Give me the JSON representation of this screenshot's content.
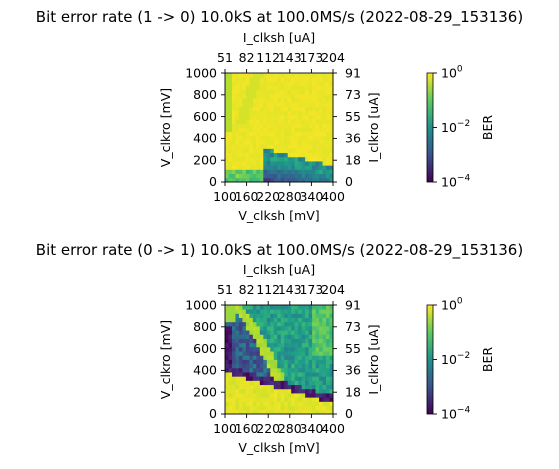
{
  "chart_data": [
    {
      "type": "heatmap",
      "title": "Bit error rate (1 -> 0) 10.0kS at 100.0MS/s (2022-08-29_153136)",
      "xlabel": "V_clksh [mV]",
      "ylabel": "V_clkro [mV]",
      "top_xlabel": "I_clksh [uA]",
      "right_ylabel": "I_clkro [uA]",
      "x_ticks": [
        "100",
        "160",
        "220",
        "280",
        "340",
        "400"
      ],
      "y_ticks": [
        "0",
        "200",
        "400",
        "600",
        "800",
        "1000"
      ],
      "top_ticks": [
        "51",
        "82",
        "112",
        "143",
        "173",
        "204"
      ],
      "right_ticks": [
        "0",
        "18",
        "36",
        "55",
        "73",
        "91"
      ],
      "xlim": [
        100,
        400
      ],
      "ylim": [
        0,
        1000
      ],
      "color_scale": "log10 BER, viridis, 1e-4 to 1e0",
      "regions": [
        {
          "description": "upper-left corner column",
          "log_ber": -0.3
        },
        {
          "description": "light diagonal band from top near V_clksh 180-200",
          "log_ber": -0.2
        },
        {
          "description": "most of plane",
          "log_ber": -0.05
        },
        {
          "description": "lower-right wedge below ~250 mV",
          "log_ber": -2.0
        },
        {
          "description": "lower-right corner cells",
          "log_ber": -3.2
        }
      ],
      "colorbar": {
        "label": "BER",
        "ticks": [
          "10",
          "10",
          "10"
        ],
        "tick_exponents": [
          "0",
          "−2",
          "−4"
        ]
      }
    },
    {
      "type": "heatmap",
      "title": "Bit error rate (0 -> 1) 10.0kS at 100.0MS/s (2022-08-29_153136)",
      "xlabel": "V_clksh [mV]",
      "ylabel": "V_clkro [mV]",
      "top_xlabel": "I_clksh [uA]",
      "right_ylabel": "I_clkro [uA]",
      "x_ticks": [
        "100",
        "160",
        "220",
        "280",
        "340",
        "400"
      ],
      "y_ticks": [
        "0",
        "200",
        "400",
        "600",
        "800",
        "1000"
      ],
      "top_ticks": [
        "51",
        "82",
        "112",
        "143",
        "173",
        "204"
      ],
      "right_ticks": [
        "0",
        "18",
        "36",
        "55",
        "73",
        "91"
      ],
      "xlim": [
        100,
        400
      ],
      "ylim": [
        0,
        1000
      ],
      "color_scale": "log10 BER, viridis, 1e-4 to 1e0",
      "regions": [
        {
          "description": "bottom band below ~300 mV",
          "log_ber": -0.1
        },
        {
          "description": "dark left column 400-800 mV",
          "log_ber": -3.5
        },
        {
          "description": "dark diagonal boundary",
          "log_ber": -3.8
        },
        {
          "description": "bright curved band",
          "log_ber": -0.3
        },
        {
          "description": "upper-right region",
          "log_ber": -1.7
        }
      ],
      "colorbar": {
        "label": "BER",
        "ticks": [
          "10",
          "10",
          "10"
        ],
        "tick_exponents": [
          "0",
          "−2",
          "−4"
        ]
      }
    }
  ]
}
